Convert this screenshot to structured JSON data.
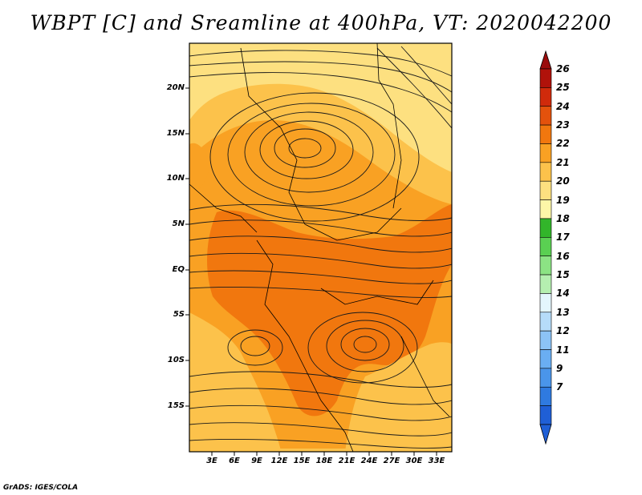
{
  "title": "WBPT [C] and Sreamline at 400hPa, VT: 2020042200",
  "credit": "GrADS: IGES/COLA",
  "lat_labels": [
    "20N",
    "15N",
    "10N",
    "5N",
    "EQ",
    "5S",
    "10S",
    "15S"
  ],
  "lon_labels": [
    "3E",
    "6E",
    "9E",
    "12E",
    "15E",
    "18E",
    "21E",
    "24E",
    "27E",
    "30E",
    "33E"
  ],
  "colorbar": {
    "labels": [
      "7",
      "9",
      "11",
      "12",
      "13",
      "14",
      "15",
      "16",
      "17",
      "18",
      "19",
      "20",
      "21",
      "22",
      "23",
      "24",
      "25",
      "26"
    ],
    "colors": [
      "#1f5fd6",
      "#2f7ae0",
      "#4a95ea",
      "#6aaef2",
      "#8cc3f6",
      "#b6dcf9",
      "#e4f6fd",
      "#b5efb0",
      "#8ce384",
      "#5ad052",
      "#32b52a",
      "#fdf6a8",
      "#fde080",
      "#fcc24b",
      "#f9a123",
      "#f1770e",
      "#e4520c",
      "#d02a0b",
      "#b0120a"
    ],
    "top_arrow_color": "#9b0c0c",
    "bottom_arrow_color": "#1f5fd6"
  },
  "field_colors": {
    "wbpt_19_20": "#fde080",
    "wbpt_20_21": "#fcc24b",
    "wbpt_21_22": "#f9a123",
    "wbpt_22_23": "#f1770e"
  }
}
